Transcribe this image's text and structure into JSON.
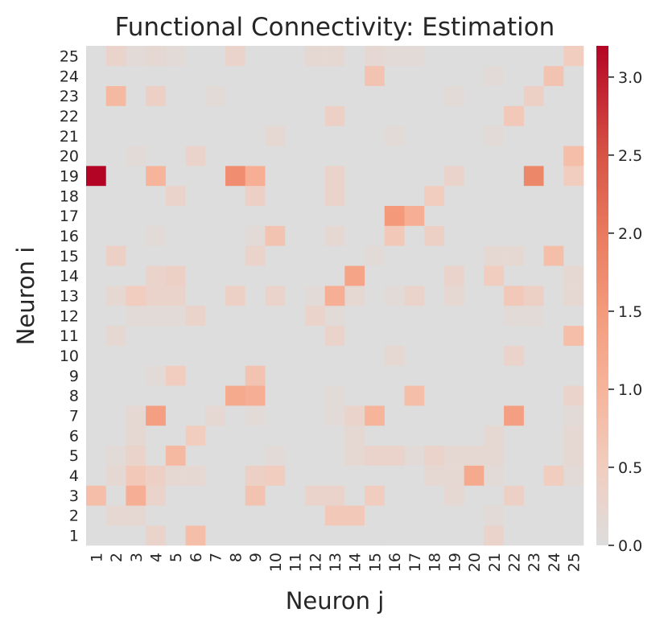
{
  "chart_data": {
    "type": "heatmap",
    "title": "Functional Connectivity: Estimation",
    "xlabel": "Neuron j",
    "ylabel": "Neuron i",
    "x_categories": [
      "1",
      "2",
      "3",
      "4",
      "5",
      "6",
      "7",
      "8",
      "9",
      "10",
      "11",
      "12",
      "13",
      "14",
      "15",
      "16",
      "17",
      "18",
      "19",
      "20",
      "21",
      "22",
      "23",
      "24",
      "25"
    ],
    "y_categories": [
      "1",
      "2",
      "3",
      "4",
      "5",
      "6",
      "7",
      "8",
      "9",
      "10",
      "11",
      "12",
      "13",
      "14",
      "15",
      "16",
      "17",
      "18",
      "19",
      "20",
      "21",
      "22",
      "23",
      "24",
      "25"
    ],
    "colorbar": {
      "vmin": 0.0,
      "vmax": 3.2,
      "ticks": [
        0.0,
        0.5,
        1.0,
        1.5,
        2.0,
        2.5,
        3.0
      ],
      "tick_labels": [
        "0.0",
        "0.5",
        "1.0",
        "1.5",
        "2.0",
        "2.5",
        "3.0"
      ],
      "colormap": "coolwarm (center 0)",
      "low_color": "#dddddd",
      "high_color": "#b40426"
    },
    "matrix_note_rows_are_neuron_i": true,
    "values": [
      [
        0,
        0,
        0,
        0.3,
        0,
        0.8,
        0,
        0,
        0,
        0,
        0,
        0,
        0,
        0,
        0,
        0,
        0,
        0,
        0,
        0,
        0.3,
        0,
        0,
        0,
        0
      ],
      [
        0,
        0.2,
        0.2,
        0,
        0,
        0,
        0,
        0,
        0,
        0,
        0,
        0,
        0.6,
        0.6,
        0,
        0,
        0,
        0,
        0,
        0,
        0.1,
        0,
        0,
        0,
        0
      ],
      [
        0.8,
        0,
        1.1,
        0.3,
        0,
        0,
        0,
        0,
        0.7,
        0,
        0,
        0.3,
        0.3,
        0,
        0.5,
        0,
        0,
        0,
        0.2,
        0,
        0,
        0.4,
        0,
        0,
        0
      ],
      [
        0,
        0.2,
        0.6,
        0.4,
        0.2,
        0.2,
        0,
        0,
        0.4,
        0.5,
        0,
        0,
        0,
        0,
        0,
        0,
        0,
        0.2,
        0.2,
        1.2,
        0.1,
        0,
        0,
        0.5,
        0.1
      ],
      [
        0,
        0.1,
        0.3,
        0,
        0.9,
        0,
        0,
        0,
        0,
        0.1,
        0,
        0,
        0,
        0.2,
        0.3,
        0.3,
        0.1,
        0.3,
        0.2,
        0.2,
        0.2,
        0,
        0,
        0,
        0.2
      ],
      [
        0,
        0,
        0.2,
        0,
        0,
        0.5,
        0,
        0,
        0,
        0,
        0,
        0,
        0,
        0.2,
        0,
        0,
        0,
        0,
        0,
        0,
        0.2,
        0,
        0,
        0,
        0.2
      ],
      [
        0,
        0,
        0.2,
        1.4,
        0,
        0,
        0.2,
        0,
        0.1,
        0,
        0,
        0,
        0.1,
        0.3,
        1.0,
        0,
        0,
        0,
        0,
        0,
        0,
        1.4,
        0,
        0,
        0.1
      ],
      [
        0,
        0,
        0,
        0,
        0,
        0,
        0,
        1.2,
        1.1,
        0,
        0,
        0,
        0.1,
        0,
        0,
        0,
        0.8,
        0,
        0,
        0,
        0,
        0,
        0,
        0,
        0.3
      ],
      [
        0,
        0,
        0,
        0.1,
        0.5,
        0,
        0,
        0,
        0.7,
        0,
        0,
        0,
        0,
        0,
        0,
        0,
        0,
        0,
        0,
        0,
        0,
        0,
        0,
        0,
        0
      ],
      [
        0,
        0,
        0,
        0,
        0,
        0,
        0,
        0,
        0,
        0,
        0,
        0,
        0,
        0,
        0,
        0.2,
        0,
        0,
        0,
        0,
        0,
        0.3,
        0,
        0,
        0
      ],
      [
        0,
        0.2,
        0,
        0,
        0,
        0,
        0,
        0,
        0,
        0,
        0,
        0,
        0.3,
        0,
        0,
        0,
        0,
        0,
        0,
        0,
        0,
        0,
        0,
        0,
        0.8
      ],
      [
        0,
        0,
        0.1,
        0.1,
        0.1,
        0.3,
        0,
        0,
        0,
        0,
        0,
        0.3,
        0.1,
        0,
        0,
        0,
        0,
        0,
        0,
        0,
        0,
        0.1,
        0.1,
        0,
        0
      ],
      [
        0,
        0.2,
        0.5,
        0.3,
        0.3,
        0,
        0,
        0.4,
        0,
        0.3,
        0,
        0.1,
        1.1,
        0.2,
        0,
        0.1,
        0.3,
        0,
        0.2,
        0,
        0,
        0.6,
        0.4,
        0,
        0.2
      ],
      [
        0,
        0,
        0,
        0.3,
        0.4,
        0,
        0,
        0,
        0,
        0,
        0,
        0,
        0,
        1.3,
        0,
        0,
        0,
        0,
        0.3,
        0,
        0.5,
        0,
        0,
        0,
        0.2
      ],
      [
        0,
        0.4,
        0,
        0,
        0,
        0,
        0,
        0,
        0.3,
        0,
        0,
        0,
        0,
        0,
        0.1,
        0,
        0,
        0,
        0,
        0,
        0.2,
        0.2,
        0,
        0.8,
        0
      ],
      [
        0,
        0,
        0,
        0.1,
        0,
        0,
        0,
        0,
        0.1,
        0.7,
        0,
        0,
        0.2,
        0,
        0,
        0.6,
        0,
        0.4,
        0,
        0,
        0,
        0,
        0,
        0,
        0
      ],
      [
        0,
        0,
        0,
        0,
        0,
        0,
        0,
        0,
        0,
        0,
        0,
        0,
        0,
        0,
        0,
        1.5,
        1.1,
        0,
        0,
        0,
        0,
        0,
        0,
        0,
        0
      ],
      [
        0,
        0,
        0,
        0,
        0.3,
        0,
        0,
        0,
        0.4,
        0,
        0,
        0,
        0.3,
        0,
        0,
        0,
        0,
        0.5,
        0,
        0,
        0,
        0,
        0,
        0,
        0
      ],
      [
        3.2,
        0,
        0,
        1.0,
        0,
        0,
        0,
        1.7,
        1.1,
        0,
        0,
        0,
        0.3,
        0,
        0,
        0,
        0,
        0,
        0.3,
        0,
        0,
        0,
        1.8,
        0,
        0.5
      ],
      [
        0,
        0,
        0.1,
        0,
        0,
        0.3,
        0,
        0,
        0,
        0,
        0,
        0,
        0,
        0,
        0,
        0,
        0,
        0,
        0,
        0,
        0,
        0,
        0,
        0,
        0.8
      ],
      [
        0,
        0,
        0,
        0,
        0,
        0,
        0,
        0,
        0,
        0.2,
        0,
        0,
        0,
        0,
        0,
        0.1,
        0,
        0,
        0,
        0,
        0.1,
        0,
        0,
        0,
        0
      ],
      [
        0,
        0,
        0,
        0,
        0,
        0,
        0,
        0,
        0,
        0,
        0,
        0,
        0.4,
        0,
        0,
        0,
        0,
        0,
        0,
        0,
        0,
        0.6,
        0,
        0,
        0
      ],
      [
        0,
        0.9,
        0,
        0.4,
        0,
        0,
        0.1,
        0,
        0,
        0,
        0,
        0,
        0,
        0,
        0,
        0,
        0,
        0,
        0.1,
        0,
        0,
        0,
        0.4,
        0,
        0
      ],
      [
        0,
        0,
        0,
        0,
        0,
        0,
        0,
        0,
        0,
        0,
        0,
        0,
        0,
        0,
        0.7,
        0,
        0,
        0,
        0,
        0,
        0.1,
        0,
        0,
        0.7,
        0
      ],
      [
        0,
        0.3,
        0.1,
        0.2,
        0.1,
        0,
        0,
        0.3,
        0,
        0,
        0,
        0.2,
        0.2,
        0,
        0.2,
        0.1,
        0.1,
        0,
        0,
        0,
        0,
        0,
        0,
        0,
        0.5
      ]
    ]
  }
}
